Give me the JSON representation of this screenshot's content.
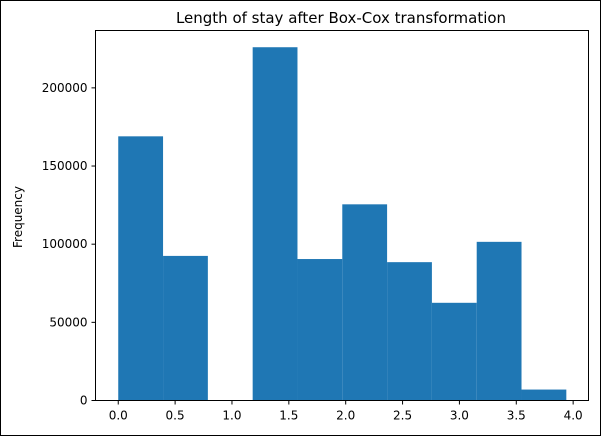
{
  "chart_data": {
    "type": "bar",
    "title": "Length of stay after Box-Cox transformation",
    "xlabel": "",
    "ylabel": "Frequency",
    "bar_color": "#1f77b4",
    "xlim": [
      -0.2,
      4.135
    ],
    "ylim": [
      0,
      236700
    ],
    "x_ticks": [
      0.0,
      0.5,
      1.0,
      1.5,
      2.0,
      2.5,
      3.0,
      3.5,
      4.0
    ],
    "x_tick_labels": [
      "0.0",
      "0.5",
      "1.0",
      "1.5",
      "2.0",
      "2.5",
      "3.0",
      "3.5",
      "4.0"
    ],
    "y_ticks": [
      0,
      50000,
      100000,
      150000,
      200000
    ],
    "y_tick_labels": [
      "0",
      "50000",
      "100000",
      "150000",
      "200000"
    ],
    "grid": false,
    "bins": [
      {
        "x0": 0.0,
        "x1": 0.394,
        "value": 169000
      },
      {
        "x0": 0.394,
        "x1": 0.788,
        "value": 92500
      },
      {
        "x0": 0.788,
        "x1": 1.182,
        "value": 0
      },
      {
        "x0": 1.182,
        "x1": 1.576,
        "value": 226000
      },
      {
        "x0": 1.576,
        "x1": 1.97,
        "value": 90500
      },
      {
        "x0": 1.97,
        "x1": 2.364,
        "value": 125500
      },
      {
        "x0": 2.364,
        "x1": 2.758,
        "value": 88500
      },
      {
        "x0": 2.758,
        "x1": 3.152,
        "value": 62500
      },
      {
        "x0": 3.152,
        "x1": 3.546,
        "value": 101500
      },
      {
        "x0": 3.546,
        "x1": 3.94,
        "value": 7000
      }
    ]
  }
}
